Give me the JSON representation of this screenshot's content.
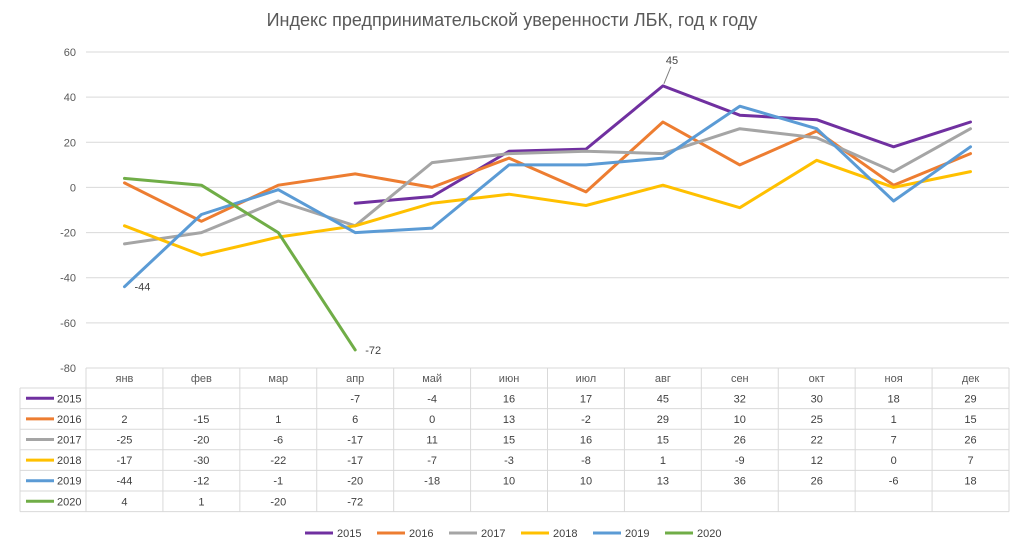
{
  "chart_data": {
    "type": "line",
    "title": "Индекс предпринимательской уверенности ЛБК, год к году",
    "categories": [
      "янв",
      "фев",
      "мар",
      "апр",
      "май",
      "июн",
      "июл",
      "авг",
      "сен",
      "окт",
      "ноя",
      "дек"
    ],
    "ylim": [
      -80,
      60
    ],
    "yticks": [
      60,
      40,
      20,
      0,
      -20,
      -40,
      -60,
      -80
    ],
    "grid": true,
    "legend_position": "bottom",
    "data_table": true,
    "series": [
      {
        "name": "2015",
        "color": "#7030A0",
        "values": [
          null,
          null,
          null,
          -7,
          -4,
          16,
          17,
          45,
          32,
          30,
          18,
          29
        ]
      },
      {
        "name": "2016",
        "color": "#ED7D31",
        "values": [
          2,
          -15,
          1,
          6,
          0,
          13,
          -2,
          29,
          10,
          25,
          1,
          15
        ]
      },
      {
        "name": "2017",
        "color": "#A5A5A5",
        "values": [
          -25,
          -20,
          -6,
          -17,
          11,
          15,
          16,
          15,
          26,
          22,
          7,
          26
        ]
      },
      {
        "name": "2018",
        "color": "#FFC000",
        "values": [
          -17,
          -30,
          -22,
          -17,
          -7,
          -3,
          -8,
          1,
          -9,
          12,
          0,
          7
        ]
      },
      {
        "name": "2019",
        "color": "#5B9BD5",
        "values": [
          -44,
          -12,
          -1,
          -20,
          -18,
          10,
          10,
          13,
          36,
          26,
          -6,
          18
        ]
      },
      {
        "name": "2020",
        "color": "#70AD47",
        "values": [
          4,
          1,
          -20,
          -72,
          null,
          null,
          null,
          null,
          null,
          null,
          null,
          null
        ]
      }
    ],
    "annotations": [
      {
        "series": "2015",
        "category": "авг",
        "text": "45"
      },
      {
        "series": "2019",
        "category": "янв",
        "text": "-44"
      },
      {
        "series": "2020",
        "category": "апр",
        "text": "-72"
      }
    ]
  }
}
